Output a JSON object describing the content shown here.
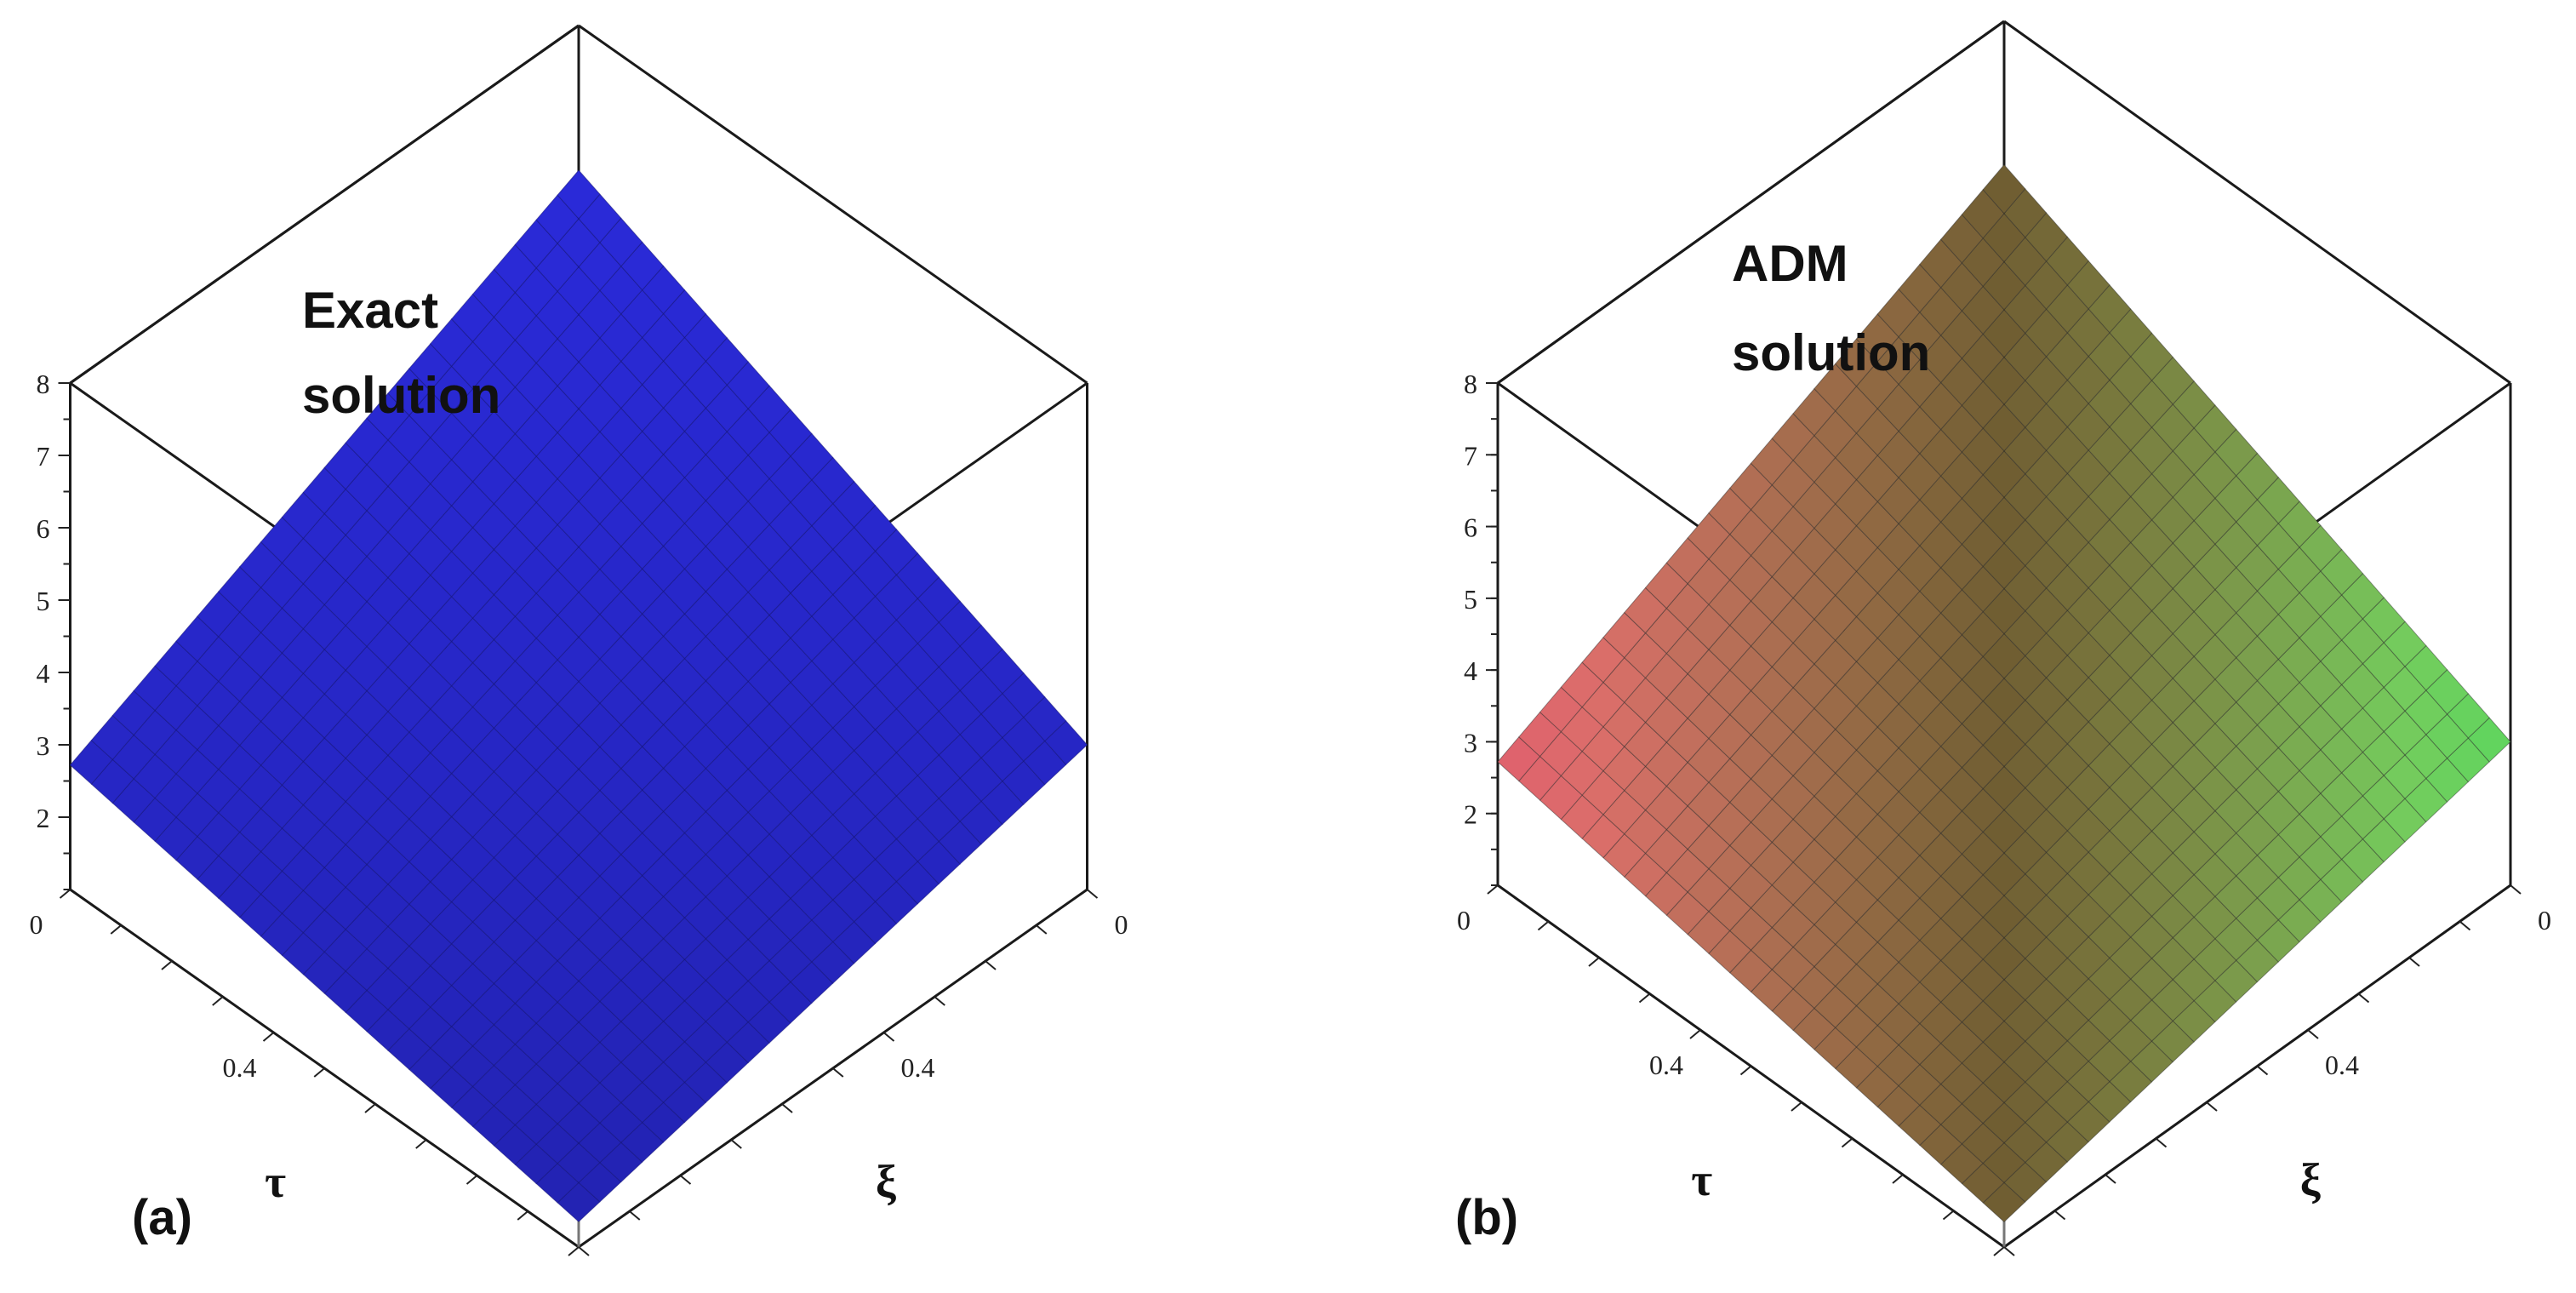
{
  "chart_data": [
    {
      "type": "surface",
      "panel_label": "(a)",
      "annotation": [
        "Exact",
        "solution"
      ],
      "xlabel": "ξ",
      "ylabel": "τ",
      "zlabel": "",
      "x_ticks": [
        "0",
        "0.4"
      ],
      "y_ticks": [
        "0",
        "0.4"
      ],
      "z_ticks": [
        "2",
        "3",
        "4",
        "5",
        "6",
        "7",
        "8"
      ],
      "zlim": [
        1,
        8
      ],
      "xlim": [
        0,
        1
      ],
      "ylim": [
        0,
        1
      ],
      "surface_z_corners": {
        "xi0_tau0": 6.0,
        "xi0_tau1": 2.72,
        "xi1_tau0": 3.0,
        "xi1_tau1": 1.35
      },
      "color": "#2a2ad8",
      "coloring": "solid"
    },
    {
      "type": "surface",
      "panel_label": "(b)",
      "annotation": [
        "ADM",
        "solution"
      ],
      "xlabel": "ξ",
      "ylabel": "τ",
      "zlabel": "",
      "x_ticks": [
        "0",
        "0.4"
      ],
      "y_ticks": [
        "0",
        "0.4"
      ],
      "z_ticks": [
        "2",
        "3",
        "4",
        "5",
        "6",
        "7",
        "8"
      ],
      "zlim": [
        1,
        8
      ],
      "xlim": [
        0,
        1
      ],
      "ylim": [
        0,
        1
      ],
      "surface_z_corners": {
        "xi0_tau0": 6.0,
        "xi0_tau1": 2.72,
        "xi1_tau0": 3.0,
        "xi1_tau1": 1.35
      },
      "colors": [
        "#e0606e",
        "#c8a85a",
        "#5ed65e"
      ],
      "coloring": "gradient"
    }
  ]
}
